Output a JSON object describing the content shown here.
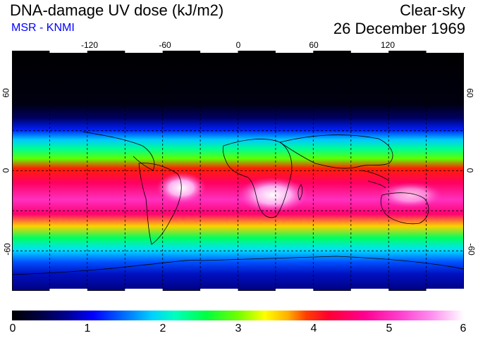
{
  "header": {
    "title": "DNA-damage UV dose (kJ/m2)",
    "source": "MSR - KNMI",
    "mode": "Clear-sky",
    "date": "26 December 1969"
  },
  "map": {
    "projection": "equirectangular",
    "lon_range": [
      -180,
      180
    ],
    "lat_range": [
      -90,
      90
    ],
    "lon_ticks": [
      "-120",
      "-60",
      "0",
      "60",
      "120"
    ],
    "lat_ticks_left": [
      "60",
      "0",
      "-60"
    ],
    "lat_ticks_right": [
      "60",
      "0",
      "-60"
    ]
  },
  "colorbar": {
    "labels": [
      "0",
      "1",
      "2",
      "3",
      "4",
      "5",
      "6"
    ],
    "min": 0,
    "max": 6
  },
  "colors": {
    "source": "#0000ff",
    "background": "#ffffff"
  }
}
